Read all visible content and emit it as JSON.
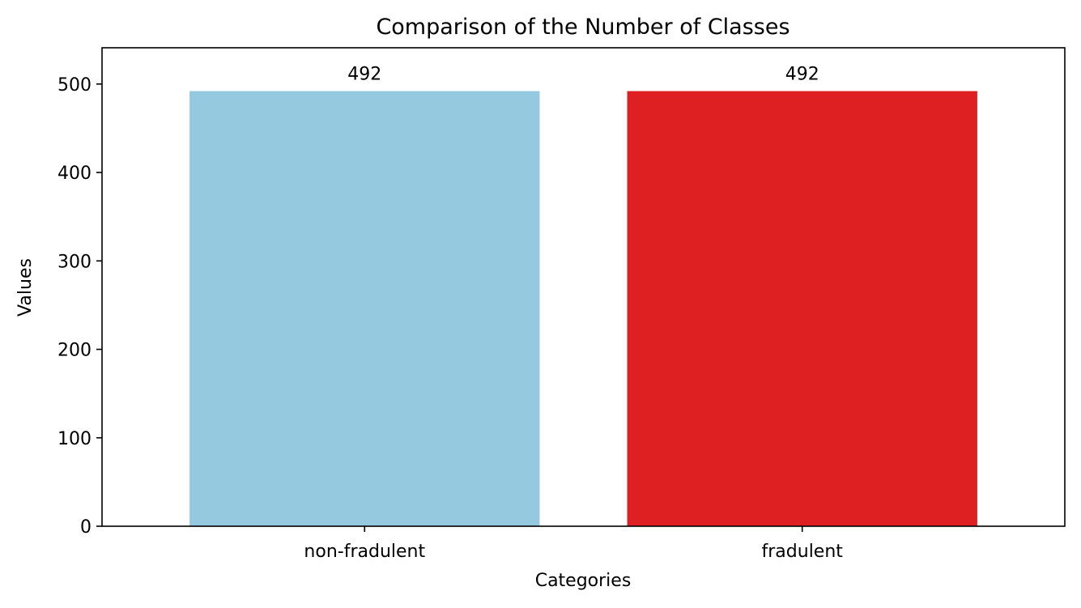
{
  "chart_data": {
    "type": "bar",
    "title": "Comparison of the Number of Classes",
    "xlabel": "Categories",
    "ylabel": "Values",
    "categories": [
      "non-fradulent",
      "fradulent"
    ],
    "values": [
      492,
      492
    ],
    "data_labels": [
      "492",
      "492"
    ],
    "bar_colors": [
      "#94c9df",
      "#df2022"
    ],
    "ylim": [
      0,
      541
    ],
    "yticks": [
      0,
      100,
      200,
      300,
      400,
      500
    ],
    "grid": false,
    "legend": "none"
  }
}
